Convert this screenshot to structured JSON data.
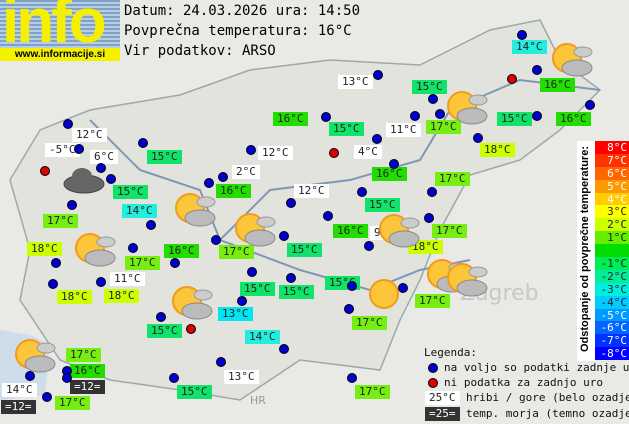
{
  "logo": {
    "text": "info",
    "url": "www.informacije.si"
  },
  "header": {
    "date": "Datum: 24.03.2026 ura: 14:50",
    "avg": "Povprečna temperatura: 16°C",
    "source": "Vir podatkov: ARSO"
  },
  "map_labels": {
    "zagreb": "Zagreb",
    "croatia": "HR"
  },
  "colors": {
    "18": "#ccff00",
    "17": "#77ee11",
    "16": "#22dd00",
    "15": "#11e26a",
    "14": "#22eedd",
    "13": "#00e5ee",
    "white": "#ffffff",
    "sea": "#333333",
    "station": "#0000cc",
    "missing": "#dd0000"
  },
  "stations": [
    {
      "t": "14°C",
      "c": "14"
    },
    {
      "t": "13°C",
      "c": "white"
    },
    {
      "t": "15°C",
      "c": "15"
    },
    {
      "t": "16°C",
      "c": "16"
    },
    {
      "t": "15°C",
      "c": "15"
    },
    {
      "t": "16°C",
      "c": "16"
    },
    {
      "t": "12°C",
      "c": "white"
    },
    {
      "t": "-5°C",
      "c": "white"
    },
    {
      "t": "6°C",
      "c": "white"
    },
    {
      "t": "15°C",
      "c": "15"
    },
    {
      "t": "16°C",
      "c": "16"
    },
    {
      "t": "12°C",
      "c": "white"
    },
    {
      "t": "15°C",
      "c": "15"
    },
    {
      "t": "11°C",
      "c": "white"
    },
    {
      "t": "17°C",
      "c": "17"
    },
    {
      "t": "4°C",
      "c": "white"
    },
    {
      "t": "18°C",
      "c": "18"
    },
    {
      "t": "2°C",
      "c": "white"
    },
    {
      "t": "16°C",
      "c": "16"
    },
    {
      "t": "15°C",
      "c": "15"
    },
    {
      "t": "12°C",
      "c": "white"
    },
    {
      "t": "16°C",
      "c": "16"
    },
    {
      "t": "17°C",
      "c": "17"
    },
    {
      "t": "15°C",
      "c": "15"
    },
    {
      "t": "14°C",
      "c": "14"
    },
    {
      "t": "17°C",
      "c": "17"
    },
    {
      "t": "18°C",
      "c": "18"
    },
    {
      "t": "16°C",
      "c": "16"
    },
    {
      "t": "17°C",
      "c": "17"
    },
    {
      "t": "17°C",
      "c": "17"
    },
    {
      "t": "15°C",
      "c": "15"
    },
    {
      "t": "16°C",
      "c": "16"
    },
    {
      "t": "9°C",
      "c": "white"
    },
    {
      "t": "17°C",
      "c": "17"
    },
    {
      "t": "18°C",
      "c": "18"
    },
    {
      "t": "15°C",
      "c": "15"
    },
    {
      "t": "15°C",
      "c": "15"
    },
    {
      "t": "15°C",
      "c": "15"
    },
    {
      "t": "11°C",
      "c": "white"
    },
    {
      "t": "18°C",
      "c": "18"
    },
    {
      "t": "18°C",
      "c": "18"
    },
    {
      "t": "13°C",
      "c": "13"
    },
    {
      "t": "15°C",
      "c": "15"
    },
    {
      "t": "17°C",
      "c": "17"
    },
    {
      "t": "17°C",
      "c": "17"
    },
    {
      "t": "14°C",
      "c": "14"
    },
    {
      "t": "17°C",
      "c": "17"
    },
    {
      "t": "16°C",
      "c": "16"
    },
    {
      "t": "=12=",
      "c": "sea"
    },
    {
      "t": "14°C",
      "c": "white"
    },
    {
      "t": "=12=",
      "c": "sea"
    },
    {
      "t": "17°C",
      "c": "17"
    },
    {
      "t": "13°C",
      "c": "white"
    },
    {
      "t": "15°C",
      "c": "15"
    },
    {
      "t": "17°C",
      "c": "17"
    }
  ],
  "weather_icons": [
    "partly-cloudy-icon",
    "partly-cloudy-icon",
    "cloud-icon",
    "partly-cloudy-icon",
    "partly-cloudy-icon",
    "partly-cloudy-icon",
    "partly-cloudy-icon",
    "partly-cloudy-icon",
    "sun-icon",
    "partly-cloudy-icon",
    "partly-cloudy-icon",
    "partly-cloudy-icon"
  ],
  "scale": {
    "title": "Odstopanje od povprečne temperature:",
    "steps": [
      {
        "l": "8°C",
        "c": "#ff0000"
      },
      {
        "l": "7°C",
        "c": "#ff3300"
      },
      {
        "l": "6°C",
        "c": "#ff6600"
      },
      {
        "l": "5°C",
        "c": "#ff9900"
      },
      {
        "l": "4°C",
        "c": "#ffcc00"
      },
      {
        "l": "3°C",
        "c": "#ffff00"
      },
      {
        "l": "2°C",
        "c": "#ccff00"
      },
      {
        "l": "1°C",
        "c": "#66ee00"
      },
      {
        "l": "",
        "c": "#00dd00"
      },
      {
        "l": "-1°C",
        "c": "#00ee55"
      },
      {
        "l": "-2°C",
        "c": "#00ee99"
      },
      {
        "l": "-3°C",
        "c": "#00eedd"
      },
      {
        "l": "-4°C",
        "c": "#00ccff"
      },
      {
        "l": "-5°C",
        "c": "#0099ff"
      },
      {
        "l": "-6°C",
        "c": "#0066ff"
      },
      {
        "l": "-7°C",
        "c": "#0033ff"
      },
      {
        "l": "-8°C",
        "c": "#0000ff"
      }
    ]
  },
  "legend": {
    "title": "Legenda:",
    "available": "na voljo so podatki zadnje ure",
    "missing": "ni podatka za zadnjo uro",
    "mountain_sample": "25°C",
    "mountain": "hribi / gore (belo ozadje)",
    "sea_sample": "=25=",
    "sea": "temp. morja (temno ozadje)"
  }
}
